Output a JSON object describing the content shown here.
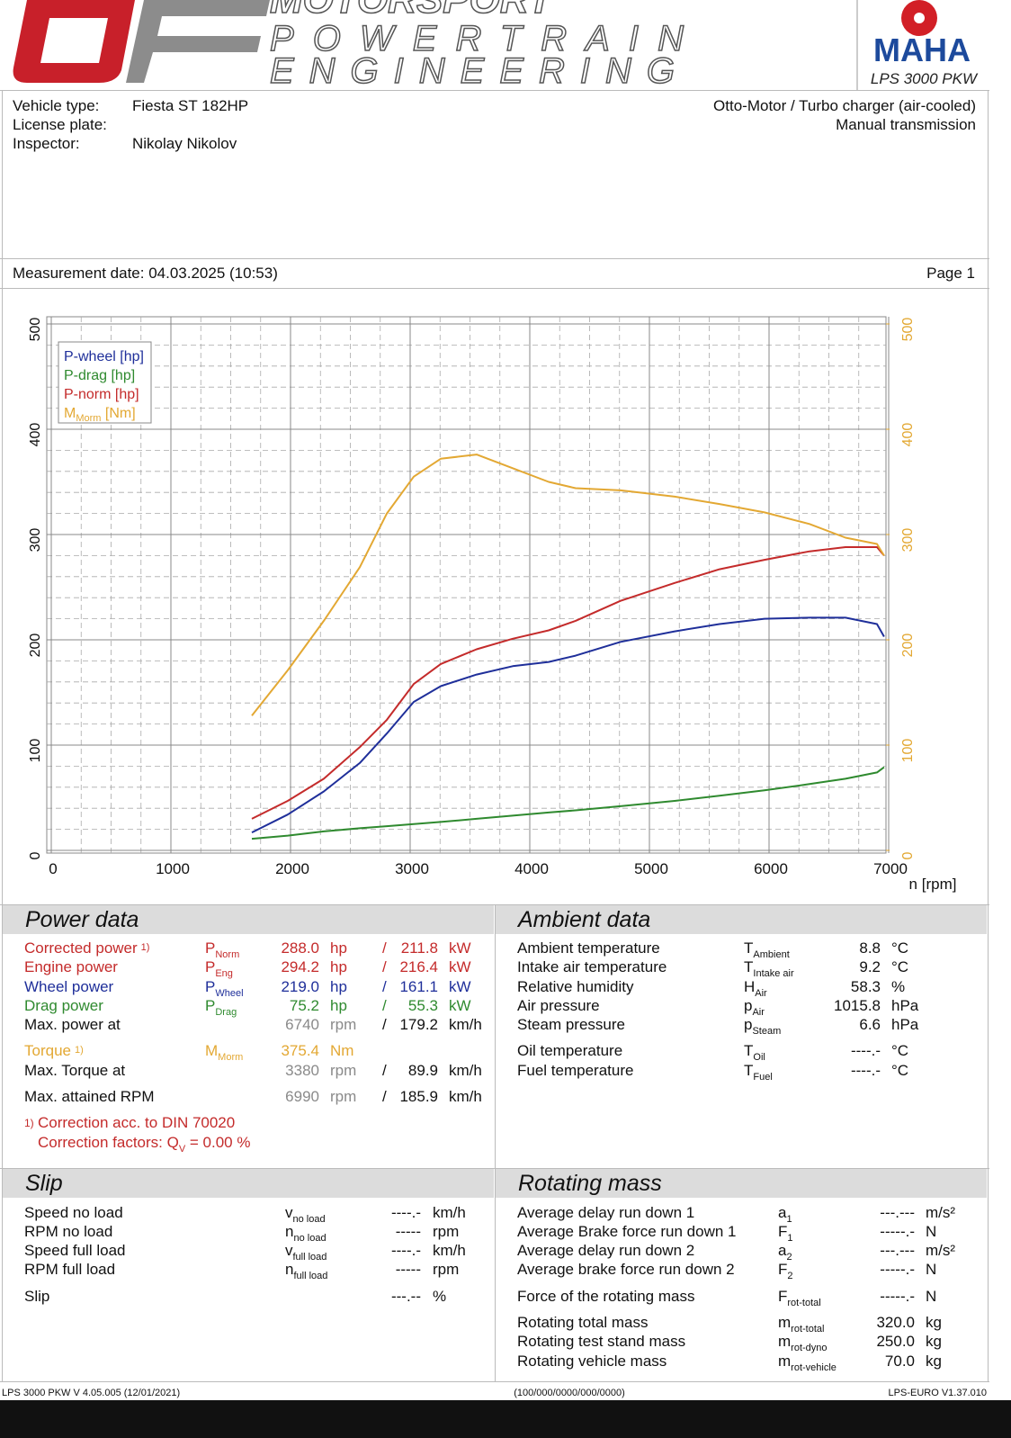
{
  "header": {
    "brand": [
      "MOTORSPORT",
      "POWERTRAIN",
      "ENGINEERING"
    ],
    "maha": "MAHA",
    "model": "LPS 3000 PKW"
  },
  "vehicle": {
    "rows": [
      [
        "Vehicle type:",
        "Fiesta ST 182HP"
      ],
      [
        "License plate:"
      ],
      [
        "Inspector:",
        "Nikolay Nikolov"
      ]
    ],
    "engine": "Otto-Motor / Turbo charger (air-cooled)",
    "transmission": "Manual transmission"
  },
  "measurement": {
    "date": "Measurement date: 04.03.2025 (10:53)",
    "page": "Page 1"
  },
  "chart_data": {
    "type": "line",
    "x_label": "n [rpm]",
    "x": [
      1677,
      1977,
      2278,
      2579,
      2805,
      3030,
      3256,
      3556,
      3857,
      4158,
      4383,
      4759,
      5211,
      5586,
      5962,
      6338,
      6639,
      6902,
      6962
    ],
    "series": [
      {
        "name": "P-wheel [hp]",
        "color": "#1f2f9a",
        "values": [
          17,
          34,
          56,
          83,
          111,
          141,
          156,
          167,
          175,
          179,
          185,
          198,
          208,
          215,
          220,
          221,
          221,
          215,
          203
        ]
      },
      {
        "name": "P-drag [hp]",
        "color": "#2f8a2f",
        "values": [
          11,
          14,
          18,
          21,
          23,
          25,
          27,
          30,
          33,
          36,
          38,
          42,
          47,
          52,
          57,
          63,
          68,
          74,
          79
        ]
      },
      {
        "name": "P-norm [hp]",
        "color": "#c42b2b",
        "values": [
          30,
          47,
          68,
          98,
          124,
          158,
          177,
          191,
          201,
          209,
          218,
          237,
          254,
          267,
          276,
          284,
          288,
          288,
          280
        ]
      },
      {
        "name": "M",
        "name_sub": "Morm",
        "name_unit": " [Nm]",
        "color": "#e3a833",
        "axis": "y2",
        "values": [
          128,
          171,
          218,
          269,
          320,
          355,
          372,
          376,
          363,
          350,
          344,
          342,
          336,
          329,
          321,
          310,
          297,
          291,
          280
        ]
      }
    ],
    "xlim": [
      0,
      7000
    ],
    "xticks": [
      0,
      1000,
      2000,
      3000,
      4000,
      5000,
      6000,
      7000
    ],
    "ylim": [
      0,
      500
    ],
    "yticks": [
      0,
      100,
      200,
      300,
      400,
      500
    ],
    "y2lim": [
      0,
      500
    ],
    "y2ticks": [
      0,
      100,
      200,
      300,
      400,
      500
    ],
    "y2color": "#e3a833",
    "grid": true,
    "legend": "upper left"
  },
  "power_data": {
    "title": "Power data",
    "rows": [
      {
        "label": "Corrected power",
        "note": "1)",
        "color": "#c42b2b",
        "value_color": "#c42b2b",
        "symbol": "P",
        "symbol_sub": "Norm",
        "value": "288.0",
        "unit": "hp",
        "sep": "/",
        "value2": "211.8",
        "unit2": "kW"
      },
      {
        "label": "Engine power",
        "color": "#c42b2b",
        "value_color": "#c42b2b",
        "symbol": "P",
        "symbol_sub": "Eng",
        "value": "294.2",
        "unit": "hp",
        "sep": "/",
        "value2": "216.4",
        "unit2": "kW"
      },
      {
        "label": "Wheel power",
        "color": "#1f2f9a",
        "value_color": "#1f2f9a",
        "symbol": "P",
        "symbol_sub": "Wheel",
        "value": "219.0",
        "unit": "hp",
        "sep": "/",
        "value2": "161.1",
        "unit2": "kW"
      },
      {
        "label": "Drag power",
        "color": "#2f8a2f",
        "value_color": "#2f8a2f",
        "symbol": "P",
        "symbol_sub": "Drag",
        "value": "75.2",
        "unit": "hp",
        "sep": "/",
        "value2": "55.3",
        "unit2": "kW"
      },
      {
        "label": "Max. power at",
        "color": "#111111",
        "value_color": "#8a8a8a",
        "value": "6740",
        "unit": "rpm",
        "sep": "/",
        "value2": "179.2",
        "unit2": "km/h"
      },
      {
        "label": "Torque",
        "note": "1)",
        "color": "#e3a833",
        "value_color": "#e3a833",
        "symbol": "M",
        "symbol_sub": "Morm",
        "value": "375.4",
        "unit": "Nm"
      },
      {
        "label": "Max. Torque at",
        "color": "#111111",
        "value_color": "#8a8a8a",
        "value": "3380",
        "unit": "rpm",
        "sep": "/",
        "value2": "89.9",
        "unit2": "km/h"
      },
      {
        "label": "Max. attained RPM",
        "color": "#111111",
        "value_color": "#8a8a8a",
        "value": "6990",
        "unit": "rpm",
        "sep": "/",
        "value2": "185.9",
        "unit2": "km/h"
      }
    ],
    "footnote": {
      "mark": "1)",
      "text": "Correction acc. to DIN 70020",
      "factors": "Correction factors: Q",
      "factors_sub": "V",
      "factors_value": " =   0.00 %"
    }
  },
  "ambient_data": {
    "title": "Ambient data",
    "rows": [
      {
        "label": "Ambient temperature",
        "symbol": "T",
        "symbol_sub": "Ambient",
        "value": "8.8",
        "unit": "°C"
      },
      {
        "label": "Intake air temperature",
        "symbol": "T",
        "symbol_sub": "Intake air",
        "value": "9.2",
        "unit": "°C"
      },
      {
        "label": "Relative humidity",
        "symbol": "H",
        "symbol_sub": "Air",
        "value": "58.3",
        "unit": "%"
      },
      {
        "label": "Air pressure",
        "symbol": "p",
        "symbol_sub": "Air",
        "value": "1015.8",
        "unit": "hPa"
      },
      {
        "label": "Steam pressure",
        "symbol": "p",
        "symbol_sub": "Steam",
        "value": "6.6",
        "unit": "hPa"
      },
      {
        "label": "Oil temperature",
        "symbol": "T",
        "symbol_sub": "Oil",
        "value": "----.-",
        "unit": "°C"
      },
      {
        "label": "Fuel temperature",
        "symbol": "T",
        "symbol_sub": "Fuel",
        "value": "----.-",
        "unit": "°C"
      }
    ]
  },
  "slip": {
    "title": "Slip",
    "rows": [
      {
        "label": "Speed no load",
        "symbol": "v",
        "symbol_sub": "no load",
        "value": "----.-",
        "unit": "km/h"
      },
      {
        "label": "RPM no load",
        "symbol": "n",
        "symbol_sub": "no load",
        "value": "-----",
        "unit": "rpm"
      },
      {
        "label": "Speed full load",
        "symbol": "v",
        "symbol_sub": "full load",
        "value": "----.-",
        "unit": "km/h"
      },
      {
        "label": "RPM full load",
        "symbol": "n",
        "symbol_sub": "full load",
        "value": "-----",
        "unit": "rpm"
      },
      {
        "label": "Slip",
        "value": "---.--",
        "unit": "%"
      }
    ]
  },
  "rotating_mass": {
    "title": "Rotating mass",
    "rows": [
      {
        "label": "Average delay run down 1",
        "symbol": "a",
        "symbol_sub": "1",
        "value": "---.---",
        "unit": "m/s²"
      },
      {
        "label": "Average Brake force run down 1",
        "symbol": "F",
        "symbol_sub": "1",
        "value": "-----.-",
        "unit": "N"
      },
      {
        "label": "Average delay run down 2",
        "symbol": "a",
        "symbol_sub": "2",
        "value": "---.---",
        "unit": "m/s²"
      },
      {
        "label": "Average brake force run down 2",
        "symbol": "F",
        "symbol_sub": "2",
        "value": "-----.-",
        "unit": "N"
      },
      {
        "label": "Force of the rotating mass",
        "symbol": "F",
        "symbol_sub": "rot-total",
        "value": "-----.-",
        "unit": "N"
      },
      {
        "label": "Rotating total mass",
        "symbol": "m",
        "symbol_sub": "rot-total",
        "value": "320.0",
        "unit": "kg"
      },
      {
        "label": "Rotating test stand mass",
        "symbol": "m",
        "symbol_sub": "rot-dyno",
        "value": "250.0",
        "unit": "kg"
      },
      {
        "label": "Rotating vehicle mass",
        "symbol": "m",
        "symbol_sub": "rot-vehicle",
        "value": "70.0",
        "unit": "kg"
      }
    ]
  },
  "footer": {
    "left": "LPS 3000 PKW V 4.05.005 (12/01/2021)",
    "center": "(100/000/0000/000/0000)",
    "right": "LPS-EURO V1.37.010"
  }
}
